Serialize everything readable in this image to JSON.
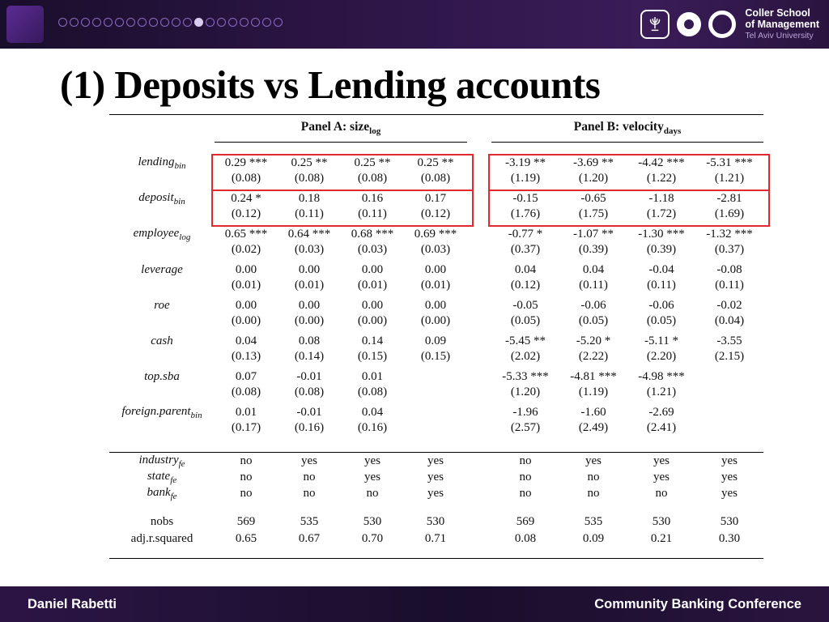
{
  "header": {
    "progress_total": 20,
    "progress_active": 12,
    "logo": {
      "line1": "Coller School",
      "line2": "of Management",
      "line3": "Tel Aviv University"
    }
  },
  "title": "(1) Deposits vs Lending accounts",
  "footer": {
    "left": "Daniel Rabetti",
    "right": "Community Banking Conference"
  },
  "colors": {
    "highlight_red": "#e02a2e",
    "header_purple": "#2c1545"
  },
  "table": {
    "panels": [
      {
        "label": "Panel A: size",
        "sub": "log"
      },
      {
        "label": "Panel B: velocity",
        "sub": "days"
      }
    ],
    "coef_rows": [
      {
        "label": "lending",
        "sub": "bin",
        "highlight": true,
        "a": [
          "0.29 ***",
          "0.25 **",
          "0.25 **",
          "0.25 **"
        ],
        "a_se": [
          "(0.08)",
          "(0.08)",
          "(0.08)",
          "(0.08)"
        ],
        "b": [
          "-3.19 **",
          "-3.69 **",
          "-4.42 ***",
          "-5.31 ***"
        ],
        "b_se": [
          "(1.19)",
          "(1.20)",
          "(1.22)",
          "(1.21)"
        ]
      },
      {
        "label": "deposit",
        "sub": "bin",
        "highlight": true,
        "a": [
          "0.24 *",
          "0.18",
          "0.16",
          "0.17"
        ],
        "a_se": [
          "(0.12)",
          "(0.11)",
          "(0.11)",
          "(0.12)"
        ],
        "b": [
          "-0.15",
          "-0.65",
          "-1.18",
          "-2.81"
        ],
        "b_se": [
          "(1.76)",
          "(1.75)",
          "(1.72)",
          "(1.69)"
        ]
      },
      {
        "label": "employee",
        "sub": "log",
        "highlight": false,
        "a": [
          "0.65 ***",
          "0.64 ***",
          "0.68 ***",
          "0.69 ***"
        ],
        "a_se": [
          "(0.02)",
          "(0.03)",
          "(0.03)",
          "(0.03)"
        ],
        "b": [
          "-0.77 *",
          "-1.07 **",
          "-1.30 ***",
          "-1.32 ***"
        ],
        "b_se": [
          "(0.37)",
          "(0.39)",
          "(0.39)",
          "(0.37)"
        ]
      },
      {
        "label": "leverage",
        "sub": "",
        "highlight": false,
        "a": [
          "0.00",
          "0.00",
          "0.00",
          "0.00"
        ],
        "a_se": [
          "(0.01)",
          "(0.01)",
          "(0.01)",
          "(0.01)"
        ],
        "b": [
          "0.04",
          "0.04",
          "-0.04",
          "-0.08"
        ],
        "b_se": [
          "(0.12)",
          "(0.11)",
          "(0.11)",
          "(0.11)"
        ]
      },
      {
        "label": "roe",
        "sub": "",
        "highlight": false,
        "a": [
          "0.00",
          "0.00",
          "0.00",
          "0.00"
        ],
        "a_se": [
          "(0.00)",
          "(0.00)",
          "(0.00)",
          "(0.00)"
        ],
        "b": [
          "-0.05",
          "-0.06",
          "-0.06",
          "-0.02"
        ],
        "b_se": [
          "(0.05)",
          "(0.05)",
          "(0.05)",
          "(0.04)"
        ]
      },
      {
        "label": "cash",
        "sub": "",
        "highlight": false,
        "a": [
          "0.04",
          "0.08",
          "0.14",
          "0.09"
        ],
        "a_se": [
          "(0.13)",
          "(0.14)",
          "(0.15)",
          "(0.15)"
        ],
        "b": [
          "-5.45 **",
          "-5.20 *",
          "-5.11 *",
          "-3.55"
        ],
        "b_se": [
          "(2.02)",
          "(2.22)",
          "(2.20)",
          "(2.15)"
        ]
      },
      {
        "label": "top.sba",
        "sub": "",
        "highlight": false,
        "a": [
          "0.07",
          "-0.01",
          "0.01",
          ""
        ],
        "a_se": [
          "(0.08)",
          "(0.08)",
          "(0.08)",
          ""
        ],
        "b": [
          "-5.33 ***",
          "-4.81 ***",
          "-4.98 ***",
          ""
        ],
        "b_se": [
          "(1.20)",
          "(1.19)",
          "(1.21)",
          ""
        ]
      },
      {
        "label": "foreign.parent",
        "sub": "bin",
        "highlight": false,
        "a": [
          "0.01",
          "-0.01",
          "0.04",
          ""
        ],
        "a_se": [
          "(0.17)",
          "(0.16)",
          "(0.16)",
          ""
        ],
        "b": [
          "-1.96",
          "-1.60",
          "-2.69",
          ""
        ],
        "b_se": [
          "(2.57)",
          "(2.49)",
          "(2.41)",
          ""
        ]
      }
    ],
    "fe_rows": [
      {
        "label": "industry",
        "sub": "fe",
        "a": [
          "no",
          "yes",
          "yes",
          "yes"
        ],
        "b": [
          "no",
          "yes",
          "yes",
          "yes"
        ]
      },
      {
        "label": "state",
        "sub": "fe",
        "a": [
          "no",
          "no",
          "yes",
          "yes"
        ],
        "b": [
          "no",
          "no",
          "yes",
          "yes"
        ]
      },
      {
        "label": "bank",
        "sub": "fe",
        "a": [
          "no",
          "no",
          "no",
          "yes"
        ],
        "b": [
          "no",
          "no",
          "no",
          "yes"
        ]
      }
    ],
    "stat_rows": [
      {
        "label": "nobs",
        "sub": "",
        "a": [
          "569",
          "535",
          "530",
          "530"
        ],
        "b": [
          "569",
          "535",
          "530",
          "530"
        ]
      },
      {
        "label": "adj.r.squared",
        "sub": "",
        "a": [
          "0.65",
          "0.67",
          "0.70",
          "0.71"
        ],
        "b": [
          "0.08",
          "0.09",
          "0.21",
          "0.30"
        ]
      }
    ]
  }
}
